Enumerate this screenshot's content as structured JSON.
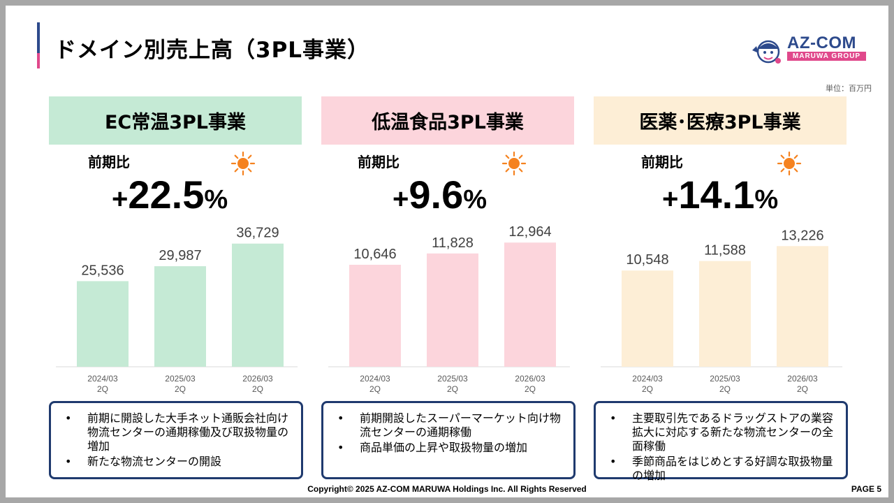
{
  "title": "ドメイン別売上高（3PL事業）",
  "logo": {
    "name": "AZ-COM",
    "sub": "MARUWA GROUP"
  },
  "unit": "単位：百万円",
  "colors": {
    "green": "#c5ead5",
    "pink": "#fcd5dc",
    "cream": "#fdeed6",
    "sun": "#f5821f",
    "navy": "#1f3a6e"
  },
  "panels": [
    {
      "header": "EC常温3PL事業",
      "yoy_label": "前期比",
      "yoy_plus": "+",
      "yoy_value": "22.5",
      "yoy_pct": "%",
      "notes": [
        "前期に開設した大手ネット通販会社向け物流センターの通期稼働及び取扱物量の増加",
        "新たな物流センターの開設"
      ]
    },
    {
      "header": "低温食品3PL事業",
      "yoy_label": "前期比",
      "yoy_plus": "+",
      "yoy_value": "9.6",
      "yoy_pct": "%",
      "notes": [
        "前期開設したスーパーマーケット向け物流センターの通期稼働",
        "商品単価の上昇や取扱物量の増加"
      ]
    },
    {
      "header": "医薬･医療3PL事業",
      "yoy_label": "前期比",
      "yoy_plus": "+",
      "yoy_value": "14.1",
      "yoy_pct": "%",
      "notes": [
        "主要取引先であるドラッグストアの業容拡大に対応する新たな物流センターの全面稼働",
        "季節商品をはじめとする好調な取扱物量の増加"
      ]
    }
  ],
  "chart_data": [
    {
      "type": "bar",
      "title": "EC常温3PL事業",
      "categories": [
        [
          "2024/03",
          "2Q"
        ],
        [
          "2025/03",
          "2Q"
        ],
        [
          "2026/03",
          "2Q"
        ]
      ],
      "values": [
        25536,
        29987,
        36729
      ],
      "labels": [
        "25,536",
        "29,987",
        "36,729"
      ],
      "ylim": [
        0,
        40000
      ],
      "color": "#c5ead5"
    },
    {
      "type": "bar",
      "title": "低温食品3PL事業",
      "categories": [
        [
          "2024/03",
          "2Q"
        ],
        [
          "2025/03",
          "2Q"
        ],
        [
          "2026/03",
          "2Q"
        ]
      ],
      "values": [
        10646,
        11828,
        12964
      ],
      "labels": [
        "10,646",
        "11,828",
        "12,964"
      ],
      "ylim": [
        0,
        14000
      ],
      "color": "#fcd5dc"
    },
    {
      "type": "bar",
      "title": "医薬･医療3PL事業",
      "categories": [
        [
          "2024/03",
          "2Q"
        ],
        [
          "2025/03",
          "2Q"
        ],
        [
          "2026/03",
          "2Q"
        ]
      ],
      "values": [
        10548,
        11588,
        13226
      ],
      "labels": [
        "10,548",
        "11,588",
        "13,226"
      ],
      "ylim": [
        0,
        14700
      ],
      "color": "#fdeed6"
    }
  ],
  "footer": "Copyright© 2025 AZ-COM MARUWA Holdings Inc. All Rights Reserved",
  "page": "PAGE 5"
}
